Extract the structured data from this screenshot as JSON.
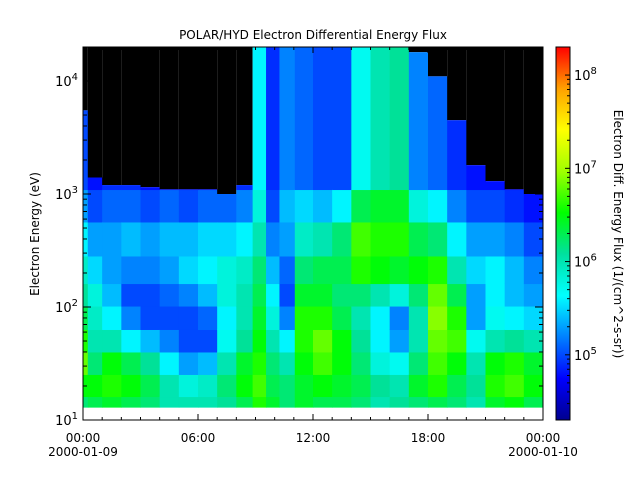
{
  "chart_data": {
    "type": "heatmap",
    "title": "POLAR/HYD  Electron Differential Energy Flux",
    "xlabel": "",
    "ylabel": "Electron Energy (eV)",
    "colorbar_label": "Electron Diff. Energy Flux (1/(cm^2-s-sr))",
    "x_ticks": [
      {
        "time": "00:00",
        "date": "2000-01-09"
      },
      {
        "time": "06:00",
        "date": ""
      },
      {
        "time": "12:00",
        "date": ""
      },
      {
        "time": "18:00",
        "date": ""
      },
      {
        "time": "00:00",
        "date": "2000-01-10"
      }
    ],
    "x_range_hours": [
      0,
      24
    ],
    "y_scale": "log",
    "y_range_ev": [
      10,
      20000
    ],
    "y_ticks": [
      {
        "base": "10",
        "exp": "1"
      },
      {
        "base": "10",
        "exp": "2"
      },
      {
        "base": "10",
        "exp": "3"
      },
      {
        "base": "10",
        "exp": "4"
      }
    ],
    "colorbar_scale": "log",
    "colorbar_range": [
      20000,
      200000000
    ],
    "colorbar_ticks": [
      {
        "base": "10",
        "exp": "5"
      },
      {
        "base": "10",
        "exp": "6"
      },
      {
        "base": "10",
        "exp": "7"
      },
      {
        "base": "10",
        "exp": "8"
      }
    ],
    "colormap": [
      "#00008f",
      "#0000ff",
      "#0080ff",
      "#00ffff",
      "#00e0a0",
      "#00ff00",
      "#a0ff00",
      "#ffff00",
      "#ffa000",
      "#ff0000"
    ],
    "no_data_color": "#000000",
    "lower_energy_cutoff_ev": 13,
    "columns": [
      {
        "hour": 0.0,
        "top_ev": 5500,
        "log_flux": [
          6.2,
          6.5,
          6.8,
          6.6,
          6.3,
          6.1,
          5.9,
          5.6,
          5.3,
          5.0
        ]
      },
      {
        "hour": 0.5,
        "top_ev": 1400,
        "log_flux": [
          6.3,
          6.5,
          6.2,
          6.0,
          5.9,
          5.8,
          5.5,
          5.3,
          5.0,
          4.8
        ]
      },
      {
        "hour": 1.5,
        "top_ev": 1200,
        "log_flux": [
          6.4,
          6.6,
          6.5,
          6.0,
          5.6,
          5.4,
          5.3,
          5.3,
          5.1,
          4.9
        ]
      },
      {
        "hour": 2.5,
        "top_ev": 1200,
        "log_flux": [
          6.3,
          6.5,
          6.3,
          5.6,
          5.2,
          5.0,
          5.2,
          5.4,
          5.1,
          4.9
        ]
      },
      {
        "hour": 3.5,
        "top_ev": 1150,
        "log_flux": [
          6.2,
          6.3,
          6.1,
          5.4,
          5.0,
          5.0,
          5.2,
          5.3,
          5.0,
          4.8
        ]
      },
      {
        "hour": 4.5,
        "top_ev": 1100,
        "log_flux": [
          6.0,
          6.0,
          5.6,
          5.2,
          5.0,
          5.1,
          5.3,
          5.4,
          5.1,
          4.8
        ]
      },
      {
        "hour": 5.5,
        "top_ev": 1100,
        "log_flux": [
          6.0,
          5.8,
          5.3,
          5.0,
          5.0,
          5.2,
          5.5,
          5.4,
          5.0,
          4.8
        ]
      },
      {
        "hour": 6.5,
        "top_ev": 1100,
        "log_flux": [
          6.0,
          5.9,
          5.4,
          5.0,
          5.1,
          5.4,
          5.6,
          5.5,
          5.1,
          4.8
        ]
      },
      {
        "hour": 7.5,
        "top_ev": 1000,
        "log_flux": [
          6.1,
          6.2,
          6.0,
          5.7,
          5.6,
          5.8,
          5.8,
          5.5,
          5.1,
          4.8
        ]
      },
      {
        "hour": 8.5,
        "top_ev": 1200,
        "log_flux": [
          6.3,
          6.5,
          6.4,
          6.1,
          6.0,
          6.0,
          5.9,
          5.6,
          5.2,
          4.9
        ]
      },
      {
        "hour": 9.2,
        "top_ev": 20000,
        "log_flux": [
          6.6,
          6.7,
          6.6,
          6.5,
          6.4,
          6.3,
          6.2,
          6.0,
          5.8,
          5.6
        ]
      },
      {
        "hour": 9.9,
        "top_ev": 20000,
        "log_flux": [
          6.4,
          6.3,
          6.2,
          6.0,
          5.8,
          5.6,
          5.4,
          5.2,
          5.0,
          4.9
        ]
      },
      {
        "hour": 10.6,
        "top_ev": 20000,
        "log_flux": [
          6.2,
          6.2,
          6.0,
          5.6,
          5.2,
          5.0,
          5.1,
          5.3,
          5.4,
          5.2
        ]
      },
      {
        "hour": 11.5,
        "top_ev": 20000,
        "log_flux": [
          6.4,
          6.4,
          6.5,
          6.6,
          6.6,
          6.4,
          6.2,
          5.9,
          5.5,
          5.1
        ]
      },
      {
        "hour": 12.5,
        "top_ev": 20000,
        "log_flux": [
          6.3,
          6.5,
          6.7,
          6.8,
          6.6,
          6.4,
          6.3,
          6.0,
          5.4,
          5.0
        ]
      },
      {
        "hour": 13.5,
        "top_ev": 20000,
        "log_flux": [
          6.3,
          6.4,
          6.5,
          6.5,
          6.3,
          6.2,
          6.3,
          6.2,
          5.6,
          5.0
        ]
      },
      {
        "hour": 14.5,
        "top_ev": 20000,
        "log_flux": [
          6.2,
          6.3,
          6.2,
          6.1,
          6.0,
          6.2,
          6.6,
          6.7,
          6.3,
          5.7
        ]
      },
      {
        "hour": 15.5,
        "top_ev": 20000,
        "log_flux": [
          6.0,
          6.1,
          5.8,
          5.6,
          5.6,
          6.0,
          6.5,
          6.6,
          6.4,
          6.0
        ]
      },
      {
        "hour": 16.5,
        "top_ev": 20000,
        "log_flux": [
          6.1,
          6.0,
          5.7,
          5.3,
          5.2,
          5.8,
          6.4,
          6.6,
          6.4,
          6.1
        ]
      },
      {
        "hour": 17.5,
        "top_ev": 18000,
        "log_flux": [
          6.2,
          6.4,
          6.2,
          6.0,
          6.0,
          6.2,
          6.5,
          6.3,
          5.8,
          5.2
        ]
      },
      {
        "hour": 18.5,
        "top_ev": 11000,
        "log_flux": [
          6.3,
          6.6,
          6.7,
          6.8,
          6.9,
          6.8,
          6.6,
          6.2,
          5.6,
          5.1
        ]
      },
      {
        "hour": 19.5,
        "top_ev": 4500,
        "log_flux": [
          6.2,
          6.3,
          6.5,
          6.7,
          6.6,
          6.3,
          6.0,
          5.6,
          5.2,
          4.9
        ]
      },
      {
        "hour": 20.5,
        "top_ev": 1800,
        "log_flux": [
          6.0,
          6.1,
          6.0,
          5.7,
          5.3,
          5.3,
          5.5,
          5.3,
          5.0,
          4.8
        ]
      },
      {
        "hour": 21.5,
        "top_ev": 1300,
        "log_flux": [
          6.4,
          6.6,
          6.5,
          6.0,
          5.7,
          5.6,
          5.6,
          5.3,
          5.0,
          4.8
        ]
      },
      {
        "hour": 22.5,
        "top_ev": 1100,
        "log_flux": [
          6.5,
          6.7,
          6.6,
          6.1,
          5.6,
          5.4,
          5.4,
          5.2,
          4.9,
          4.7
        ]
      },
      {
        "hour": 23.5,
        "top_ev": 1000,
        "log_flux": [
          6.3,
          6.5,
          6.4,
          6.0,
          5.5,
          5.3,
          5.2,
          5.0,
          4.8,
          4.6
        ]
      }
    ],
    "energy_levels_ev": [
      13,
      20,
      32,
      50,
      80,
      130,
      200,
      400,
      800,
      1500
    ]
  }
}
